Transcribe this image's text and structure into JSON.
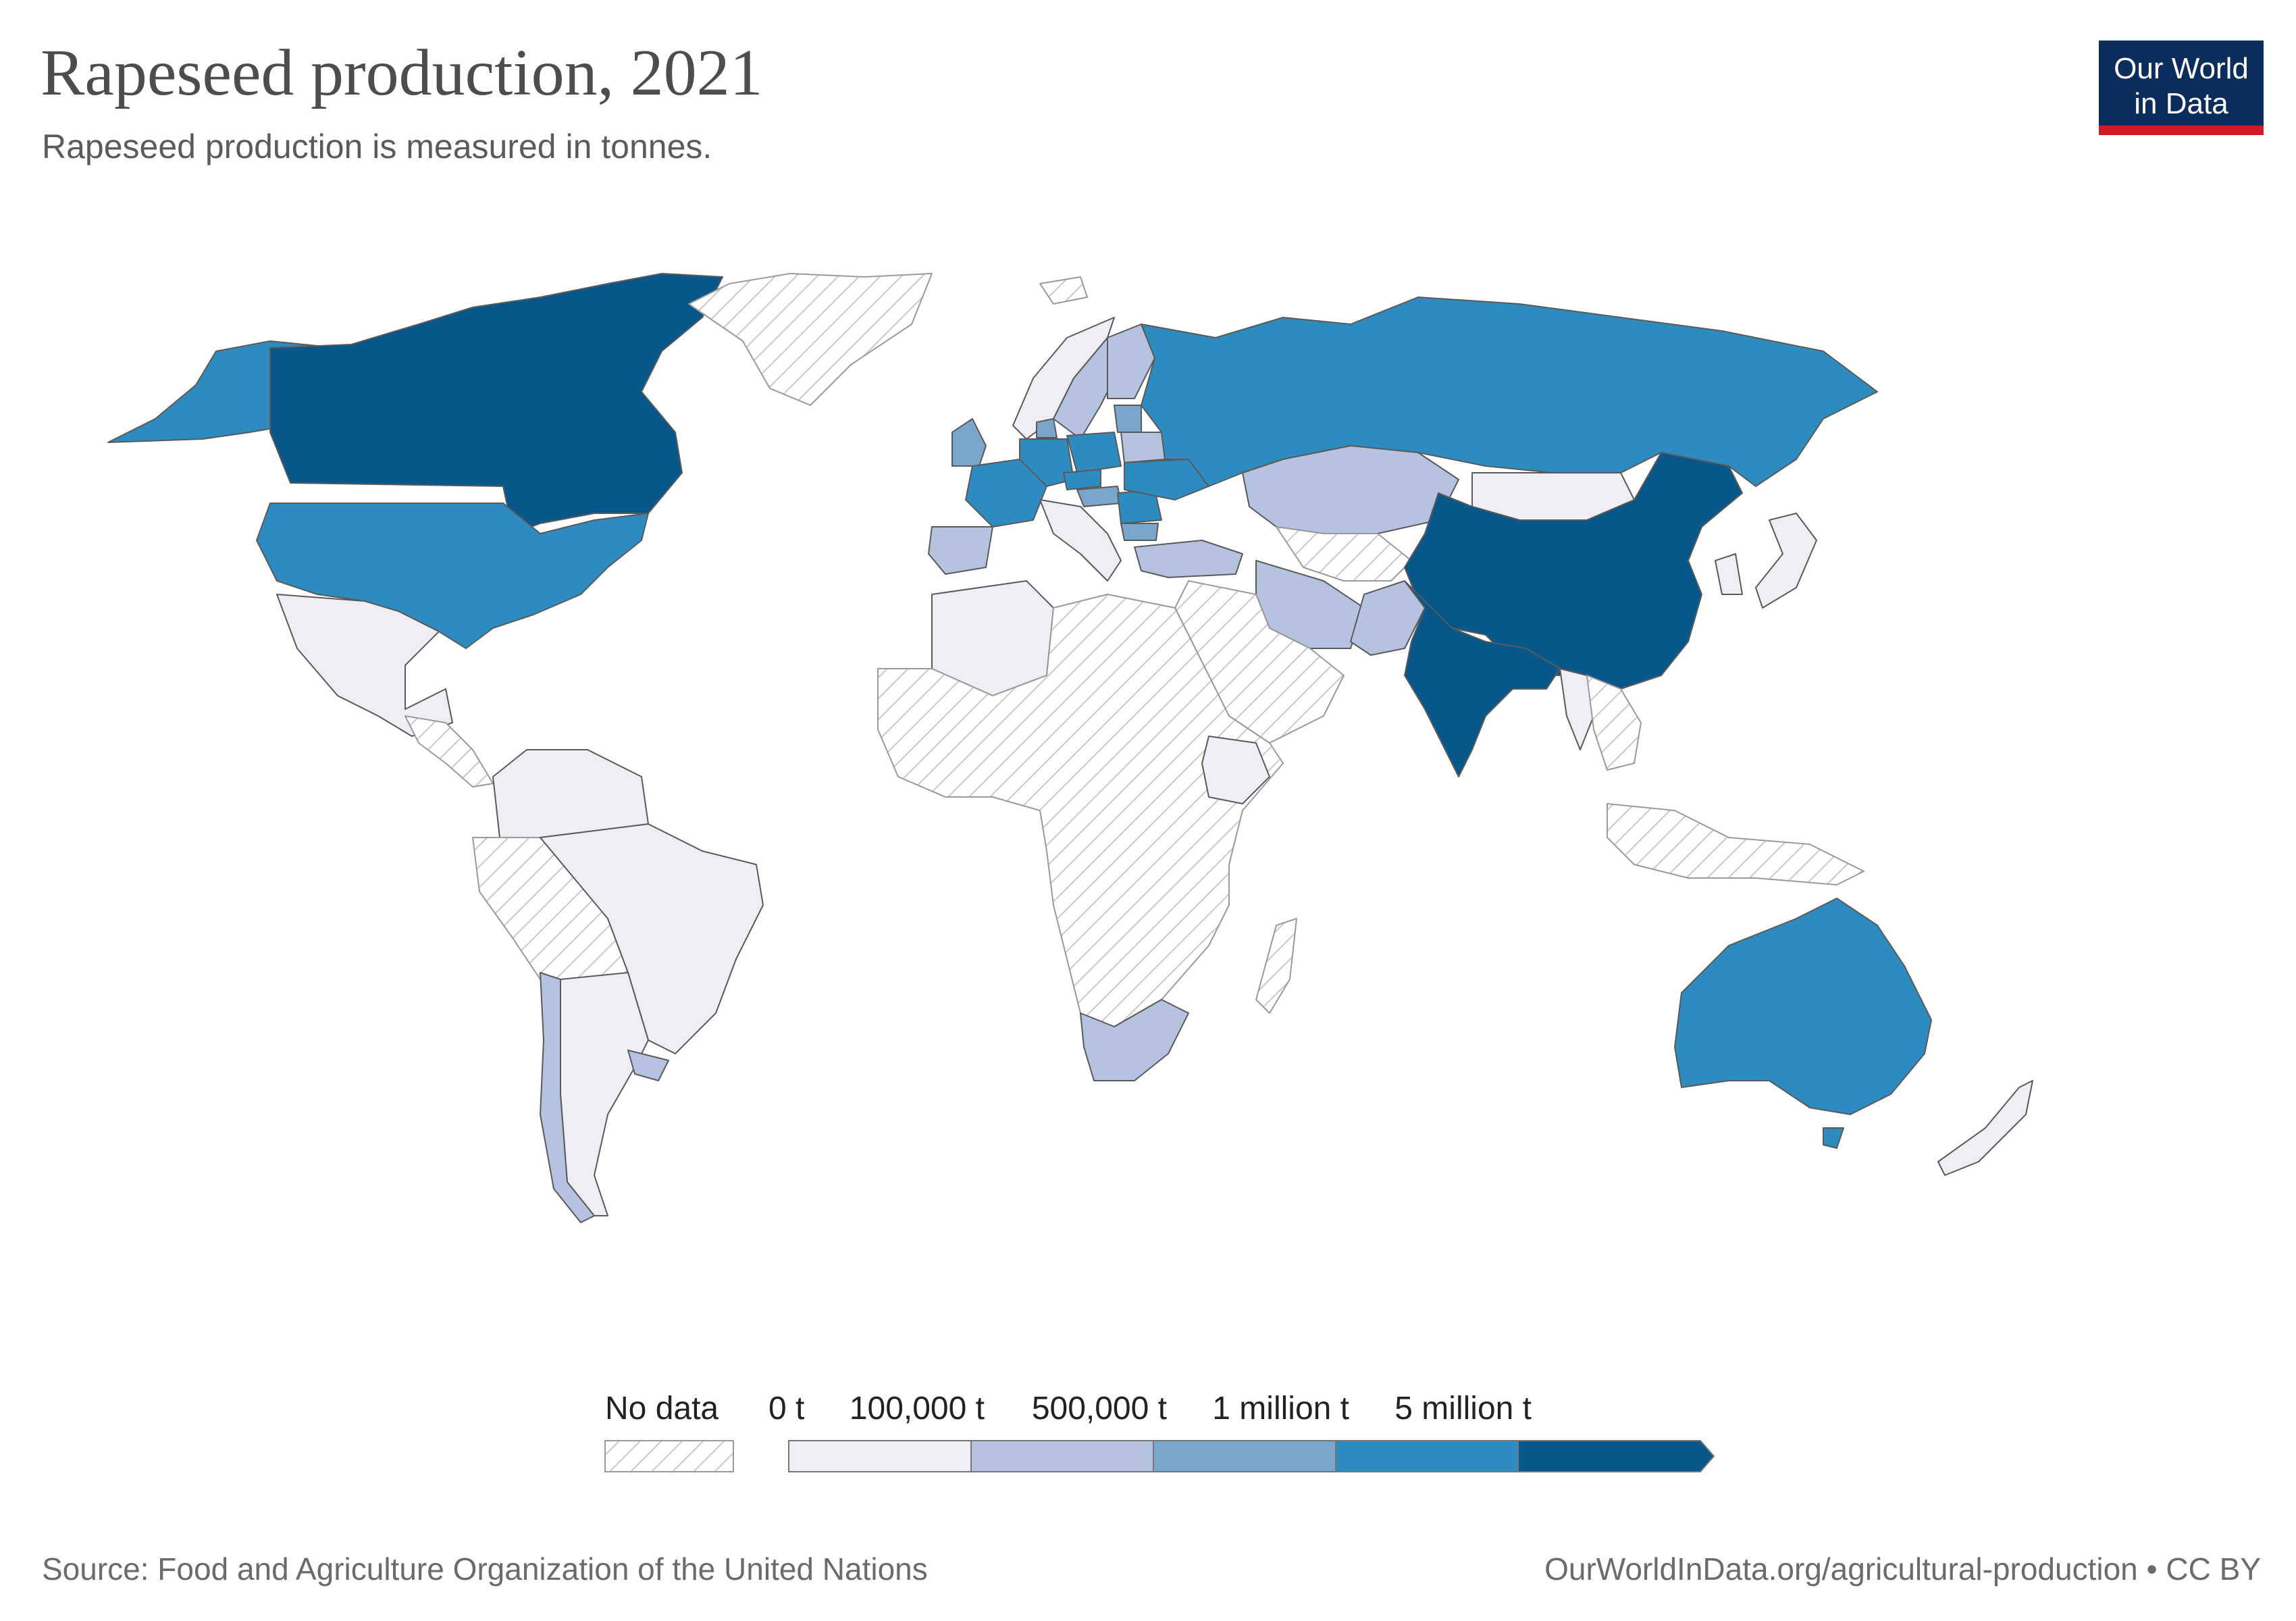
{
  "title": "Rapeseed production, 2021",
  "subtitle": "Rapeseed production is measured in tonnes.",
  "logo": {
    "line1": "Our World",
    "line2": "in Data",
    "bg": "#0b2d5b",
    "accent": "#cf1b25"
  },
  "legend": {
    "no_data_label": "No data",
    "bins": [
      {
        "label": "0 t",
        "color": "#efeef5"
      },
      {
        "label": "100,000 t",
        "color": "#b5c3e0"
      },
      {
        "label": "500,000 t",
        "color": "#7aa6cc"
      },
      {
        "label": "1 million t",
        "color": "#2e8bc0"
      },
      {
        "label": "5 million t",
        "color": "#08578b"
      }
    ]
  },
  "footer": {
    "source": "Source: Food and Agriculture Organization of the United Nations",
    "url": "OurWorldInData.org/agricultural-production • CC BY"
  },
  "map": {
    "regions": [
      {
        "name": "canada",
        "bin": 4
      },
      {
        "name": "china",
        "bin": 4
      },
      {
        "name": "india",
        "bin": 4
      },
      {
        "name": "usa",
        "bin": 3
      },
      {
        "name": "alaska",
        "bin": 3
      },
      {
        "name": "russia",
        "bin": 3
      },
      {
        "name": "australia",
        "bin": 3
      },
      {
        "name": "tasmania",
        "bin": 3
      },
      {
        "name": "france",
        "bin": 3
      },
      {
        "name": "germany",
        "bin": 3
      },
      {
        "name": "poland",
        "bin": 3
      },
      {
        "name": "ukraine",
        "bin": 3
      },
      {
        "name": "czechia",
        "bin": 3
      },
      {
        "name": "romania",
        "bin": 3
      },
      {
        "name": "uk",
        "bin": 2
      },
      {
        "name": "lithuania-latvia",
        "bin": 2
      },
      {
        "name": "hungary",
        "bin": 2
      },
      {
        "name": "denmark",
        "bin": 2
      },
      {
        "name": "bulgaria",
        "bin": 2
      },
      {
        "name": "spain",
        "bin": 1
      },
      {
        "name": "sweden",
        "bin": 1
      },
      {
        "name": "finland",
        "bin": 1
      },
      {
        "name": "kazakhstan",
        "bin": 1
      },
      {
        "name": "turkey",
        "bin": 1
      },
      {
        "name": "iran",
        "bin": 1
      },
      {
        "name": "pakistan",
        "bin": 1
      },
      {
        "name": "chile",
        "bin": 1
      },
      {
        "name": "uruguay",
        "bin": 1
      },
      {
        "name": "south-africa",
        "bin": 1
      },
      {
        "name": "belarus",
        "bin": 1
      },
      {
        "name": "mexico",
        "bin": 0
      },
      {
        "name": "brazil",
        "bin": 0
      },
      {
        "name": "argentina",
        "bin": 0
      },
      {
        "name": "colombia-venezuela",
        "bin": 0
      },
      {
        "name": "algeria",
        "bin": 0
      },
      {
        "name": "ethiopia",
        "bin": 0
      },
      {
        "name": "mongolia",
        "bin": 0
      },
      {
        "name": "italy-balkans",
        "bin": 0
      },
      {
        "name": "norway",
        "bin": 0
      },
      {
        "name": "myanmar",
        "bin": 0
      },
      {
        "name": "new-zealand",
        "bin": 0
      },
      {
        "name": "japan",
        "bin": 0
      },
      {
        "name": "korea",
        "bin": 0
      },
      {
        "name": "greenland",
        "bin": -1
      },
      {
        "name": "africa-rest",
        "bin": -1
      },
      {
        "name": "arabia",
        "bin": -1
      },
      {
        "name": "peru-bolivia",
        "bin": -1
      },
      {
        "name": "central-america",
        "bin": -1
      },
      {
        "name": "indonesia",
        "bin": -1
      },
      {
        "name": "madagascar",
        "bin": -1
      },
      {
        "name": "central-asia",
        "bin": -1
      },
      {
        "name": "southeast-asia",
        "bin": -1
      },
      {
        "name": "svalbard",
        "bin": -1
      }
    ]
  }
}
